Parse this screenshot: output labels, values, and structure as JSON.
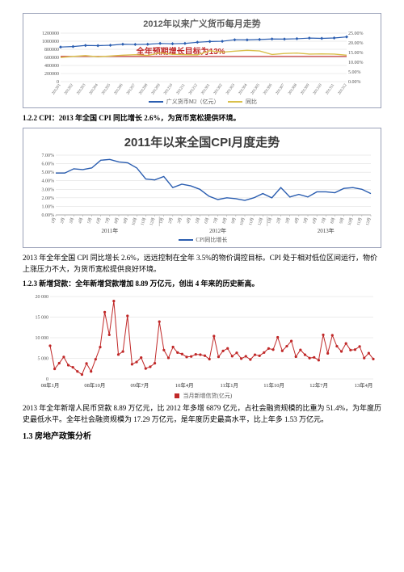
{
  "chart1": {
    "title": "2012年以来广义货币每月走势",
    "annotation": "全年预期增长目标为13%",
    "legend_m2": "广义货币M2（亿元）",
    "legend_yoy": "同比",
    "y_left_ticks": [
      "0",
      "200000",
      "400000",
      "600000",
      "800000",
      "1000000",
      "1200000"
    ],
    "y_right_ticks": [
      "0.00%",
      "5.00%",
      "10.00%",
      "15.00%",
      "20.00%",
      "25.00%"
    ],
    "x_labels": [
      "201201",
      "201202",
      "201203",
      "201204",
      "201205",
      "201206",
      "201207",
      "201208",
      "201209",
      "201210",
      "201211",
      "201212",
      "201301",
      "201302",
      "201303",
      "201304",
      "201305",
      "201306",
      "201307",
      "201308",
      "201309",
      "201310",
      "201311",
      "201312"
    ],
    "m2_values": [
      855898,
      867177,
      895565,
      889611,
      900489,
      924991,
      919072,
      924895,
      944129,
      936438,
      944820,
      974149,
      992129,
      998625,
      1035859,
      1032551,
      1042169,
      1054404,
      1052212,
      1061256,
      1077379,
      1070236,
      1079308,
      1106525
    ],
    "m2_max": 1200000,
    "yoy_values": [
      12.4,
      13.0,
      13.4,
      12.8,
      13.2,
      13.6,
      13.9,
      13.5,
      14.8,
      14.1,
      13.9,
      13.8,
      15.9,
      15.2,
      15.7,
      16.1,
      15.8,
      14.0,
      14.5,
      14.7,
      14.2,
      14.3,
      14.2,
      13.6
    ],
    "yoy_max": 25,
    "hline_pct": 13,
    "colors": {
      "m2_line": "#2a5db0",
      "m2_marker": "#2a5db0",
      "yoy_line": "#d9c04b",
      "hline": "#c02828",
      "grid": "#d8d8d8",
      "annotation": "#c02828"
    }
  },
  "s122_heading": "1.2.2  CPI：2013 年全国 CPI 同比增长 2.6%，为货币宽松提供环境。",
  "chart2": {
    "title": "2011年以来全国CPI月度走势",
    "legend": "CPI同比增长",
    "year_labels": [
      "2011年",
      "2012年",
      "2013年"
    ],
    "x_labels": [
      "1月",
      "2月",
      "3月",
      "4月",
      "5月",
      "6月",
      "7月",
      "8月",
      "9月",
      "10月",
      "11月",
      "12月",
      "1月",
      "2月",
      "3月",
      "4月",
      "5月",
      "6月",
      "7月",
      "8月",
      "9月",
      "10月",
      "11月",
      "12月",
      "1月",
      "2月",
      "3月",
      "4月",
      "5月",
      "6月",
      "7月",
      "8月",
      "9月",
      "10月",
      "11月",
      "12月"
    ],
    "values": [
      4.9,
      4.9,
      5.4,
      5.3,
      5.5,
      6.4,
      6.5,
      6.2,
      6.1,
      5.5,
      4.2,
      4.1,
      4.5,
      3.2,
      3.6,
      3.4,
      3.0,
      2.2,
      1.8,
      2.0,
      1.9,
      1.7,
      2.0,
      2.5,
      2.0,
      3.2,
      2.1,
      2.4,
      2.1,
      2.7,
      2.7,
      2.6,
      3.1,
      3.2,
      3.0,
      2.5
    ],
    "y_ticks": [
      "0.00%",
      "1.00%",
      "2.00%",
      "3.00%",
      "4.00%",
      "5.00%",
      "6.00%",
      "7.00%"
    ],
    "y_max": 7,
    "colors": {
      "line": "#2a5db0",
      "grid": "#d8d8d8"
    }
  },
  "s122_body": "2013 年全年全国 CPI 同比增长 2.6%，远远控制在全年 3.5%的物价调控目标。CPI 处于相对低位区间运行，物价上涨压力不大，为货币宽松提供良好环境。",
  "s123_heading": "1.2.3  新增贷款：全年新增贷款增加 8.89 万亿元，创出 4 年来的历史新高。",
  "chart3": {
    "legend": "当月新增信贷(亿元)",
    "x_labels": [
      "08年1月",
      "08年10月",
      "09年7月",
      "10年4月",
      "11年1月",
      "11年10月",
      "12年7月",
      "13年4月"
    ],
    "values": [
      8036,
      2434,
      3818,
      5322,
      3326,
      2819,
      1817,
      1064,
      3745,
      1819,
      4769,
      7718,
      16200,
      10700,
      18900,
      5918,
      6645,
      15300,
      3559,
      4104,
      5167,
      2530,
      2948,
      3798,
      13900,
      7001,
      5107,
      7740,
      6394,
      6034,
      5328,
      5452,
      5955,
      5877,
      5640,
      4807,
      10400,
      5356,
      6794,
      7396,
      5516,
      6339,
      4926,
      5485,
      4700,
      5868,
      5622,
      6405,
      7381,
      7107,
      10100,
      6818,
      7932,
      9198,
      5401,
      7039,
      5870,
      5052,
      5229,
      4543,
      10700,
      6200,
      10600,
      7929,
      6674,
      8605,
      6999,
      7113,
      7870,
      5061,
      6246,
      4825
    ],
    "y_ticks": [
      "0",
      "5 000",
      "10 000",
      "15 000",
      "20 000"
    ],
    "y_max": 20000,
    "colors": {
      "line": "#c02828",
      "marker": "#c02828",
      "grid": "#d8d8d8"
    }
  },
  "s123_body": "2013 年全年新增人民币贷款 8.89 万亿元，比 2012 年多增 6879 亿元，占社会融资规模的比重为 51.4%，为年度历史最低水平。全年社会融资规模为 17.29 万亿元，是年度历史最高水平，比上年多 1.53 万亿元。",
  "s13_heading": "1.3 房地产政策分析"
}
